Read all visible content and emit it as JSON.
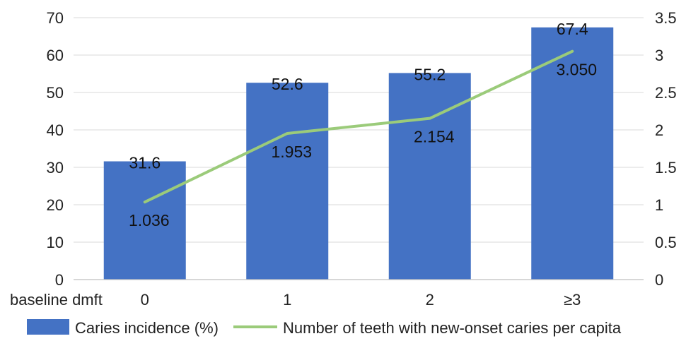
{
  "chart_data": {
    "type": "bar",
    "categories": [
      "0",
      "1",
      "2",
      "≥3"
    ],
    "x_prefix_label": "baseline dmft",
    "series": [
      {
        "name": "Caries incidence (%)",
        "type": "bar",
        "axis": "left",
        "values": [
          31.6,
          52.6,
          55.2,
          67.4
        ],
        "labels": [
          "31.6",
          "52.6",
          "55.2",
          "67.4"
        ],
        "color": "#4472C4"
      },
      {
        "name": "Number of teeth with new-onset caries per capita",
        "type": "line",
        "axis": "right",
        "values": [
          1.036,
          1.953,
          2.154,
          3.05
        ],
        "labels": [
          "1.036",
          "1.953",
          "2.154",
          "3.050"
        ],
        "color": "#9BCB7A"
      }
    ],
    "y_left": {
      "lim": [
        0,
        70
      ],
      "ticks": [
        "0",
        "10",
        "20",
        "30",
        "40",
        "50",
        "60",
        "70"
      ]
    },
    "y_right": {
      "lim": [
        0,
        3.5
      ],
      "ticks": [
        "0",
        "0.5",
        "1",
        "1.5",
        "2",
        "2.5",
        "3",
        "3.5"
      ]
    },
    "grid": "horizontal",
    "legend_position": "bottom"
  }
}
